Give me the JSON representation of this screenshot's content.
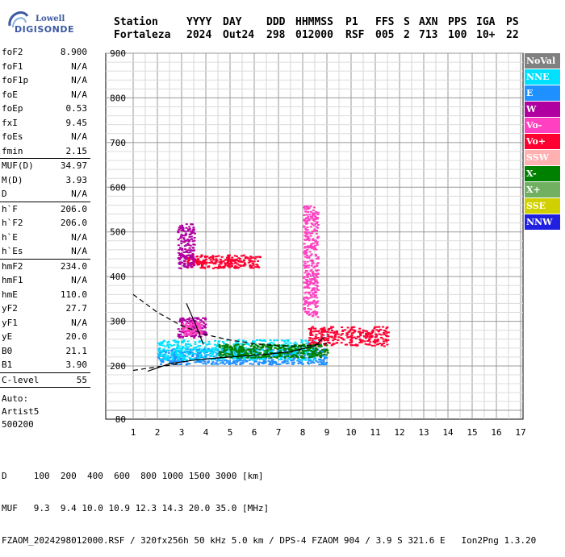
{
  "logo": {
    "line1": "Lowell",
    "line2": "DIGISONDE"
  },
  "header": {
    "labels": [
      "Station",
      "YYYY",
      "DAY",
      "DDD",
      "HHMMSS",
      "P1",
      "FFS",
      "S",
      "AXN",
      "PPS",
      "IGA",
      "PS"
    ],
    "values": [
      "Fortaleza",
      "2024",
      "Out24",
      "298",
      "012000",
      "RSF",
      "005",
      "2",
      "713",
      "100",
      "10+",
      "22"
    ]
  },
  "params": {
    "group1": [
      {
        "name": "foF2",
        "value": "8.900"
      },
      {
        "name": "foF1",
        "value": "N/A"
      },
      {
        "name": "foF1p",
        "value": "N/A"
      },
      {
        "name": "foE",
        "value": "N/A"
      },
      {
        "name": "foEp",
        "value": "0.53"
      },
      {
        "name": "fxI",
        "value": "9.45"
      },
      {
        "name": "foEs",
        "value": "N/A"
      },
      {
        "name": "fmin",
        "value": "2.15"
      }
    ],
    "group2": [
      {
        "name": "MUF(D)",
        "value": "34.97"
      },
      {
        "name": "M(D)",
        "value": "3.93"
      },
      {
        "name": "D",
        "value": "N/A"
      }
    ],
    "group3": [
      {
        "name": "h`F",
        "value": "206.0"
      },
      {
        "name": "h`F2",
        "value": "206.0"
      },
      {
        "name": "h`E",
        "value": "N/A"
      },
      {
        "name": "h`Es",
        "value": "N/A"
      }
    ],
    "group4": [
      {
        "name": "hmF2",
        "value": "234.0"
      },
      {
        "name": "hmF1",
        "value": "N/A"
      },
      {
        "name": "hmE",
        "value": "110.0"
      },
      {
        "name": "yF2",
        "value": "27.7"
      },
      {
        "name": "yF1",
        "value": "N/A"
      },
      {
        "name": "yE",
        "value": "20.0"
      },
      {
        "name": "B0",
        "value": "21.1"
      },
      {
        "name": "B1",
        "value": "3.90"
      }
    ],
    "group5": [
      {
        "name": "C-level",
        "value": "55"
      }
    ],
    "auto": [
      "Auto:",
      "Artist5",
      "500200"
    ]
  },
  "legend": [
    {
      "label": "NoVal",
      "color": "#808080"
    },
    {
      "label": "NNE",
      "color": "#00e0ff"
    },
    {
      "label": "E",
      "color": "#1e90ff"
    },
    {
      "label": "W",
      "color": "#b000a0"
    },
    {
      "label": "Vo-",
      "color": "#ff40c0"
    },
    {
      "label": "Vo+",
      "color": "#ff0030"
    },
    {
      "label": "SSW",
      "color": "#ffb0b0"
    },
    {
      "label": "X-",
      "color": "#008000"
    },
    {
      "label": "X+",
      "color": "#70b060"
    },
    {
      "label": "SSE",
      "color": "#d0d000"
    },
    {
      "label": "NNW",
      "color": "#2020e0"
    }
  ],
  "bottom": {
    "line1": "D     100  200  400  600  800 1000 1500 3000 [km]",
    "line2": "MUF   9.3  9.4 10.0 10.9 12.3 14.3 20.0 35.0 [MHz]",
    "line3": "FZAOM_2024298012000.RSF / 320fx256h 50 kHz 5.0 km / DPS-4 FZAOM 904 / 3.9 S 321.6 E   Ion2Png 1.3.20"
  },
  "chart_data": {
    "type": "scatter",
    "title": "",
    "xlabel": "",
    "ylabel": "",
    "xlim": [
      1,
      17
    ],
    "ylim": [
      80,
      900
    ],
    "grid": true,
    "x_ticks": [
      1,
      2,
      3,
      4,
      5,
      6,
      7,
      8,
      9,
      10,
      11,
      12,
      13,
      14,
      15,
      16,
      17
    ],
    "y_ticks": [
      80,
      200,
      300,
      400,
      500,
      600,
      700,
      800,
      900
    ],
    "echo_clusters": [
      {
        "color": "#1e90ff",
        "x": [
          2.0,
          9.0
        ],
        "y": [
          205,
          240
        ]
      },
      {
        "color": "#00e0ff",
        "x": [
          2.0,
          8.5
        ],
        "y": [
          215,
          260
        ]
      },
      {
        "color": "#b000a0",
        "x": [
          2.8,
          4.0
        ],
        "y": [
          265,
          310
        ]
      },
      {
        "color": "#ff40c0",
        "x": [
          3.0,
          3.8
        ],
        "y": [
          270,
          300
        ]
      },
      {
        "color": "#ff0030",
        "x": [
          8.2,
          11.5
        ],
        "y": [
          245,
          290
        ]
      },
      {
        "color": "#008000",
        "x": [
          4.5,
          9.0
        ],
        "y": [
          220,
          250
        ]
      },
      {
        "color": "#ff0030",
        "x": [
          3.2,
          6.2
        ],
        "y": [
          420,
          450
        ]
      },
      {
        "color": "#b000a0",
        "x": [
          2.8,
          3.5
        ],
        "y": [
          420,
          520
        ]
      },
      {
        "color": "#ff40c0",
        "x": [
          8.0,
          8.6
        ],
        "y": [
          310,
          560
        ]
      }
    ],
    "trace_solid": {
      "x": [
        1.6,
        2.5,
        3.5,
        4.5,
        5.5,
        6.5,
        7.5,
        8.5,
        8.9
      ],
      "y": [
        188,
        205,
        213,
        218,
        222,
        226,
        232,
        245,
        265
      ]
    },
    "trace_solid_upper": {
      "x": [
        3.2,
        3.6,
        3.9
      ],
      "y": [
        340,
        290,
        248
      ]
    },
    "trace_dashed": {
      "x": [
        1.0,
        2.0,
        3.0,
        4.0,
        5.0,
        6.0,
        7.0,
        8.0,
        9.0
      ],
      "y": [
        360,
        320,
        290,
        270,
        258,
        250,
        245,
        245,
        250
      ]
    },
    "trace_dashed_lower": {
      "x": [
        1.0,
        2.0,
        3.0
      ],
      "y": [
        190,
        198,
        205
      ]
    }
  }
}
